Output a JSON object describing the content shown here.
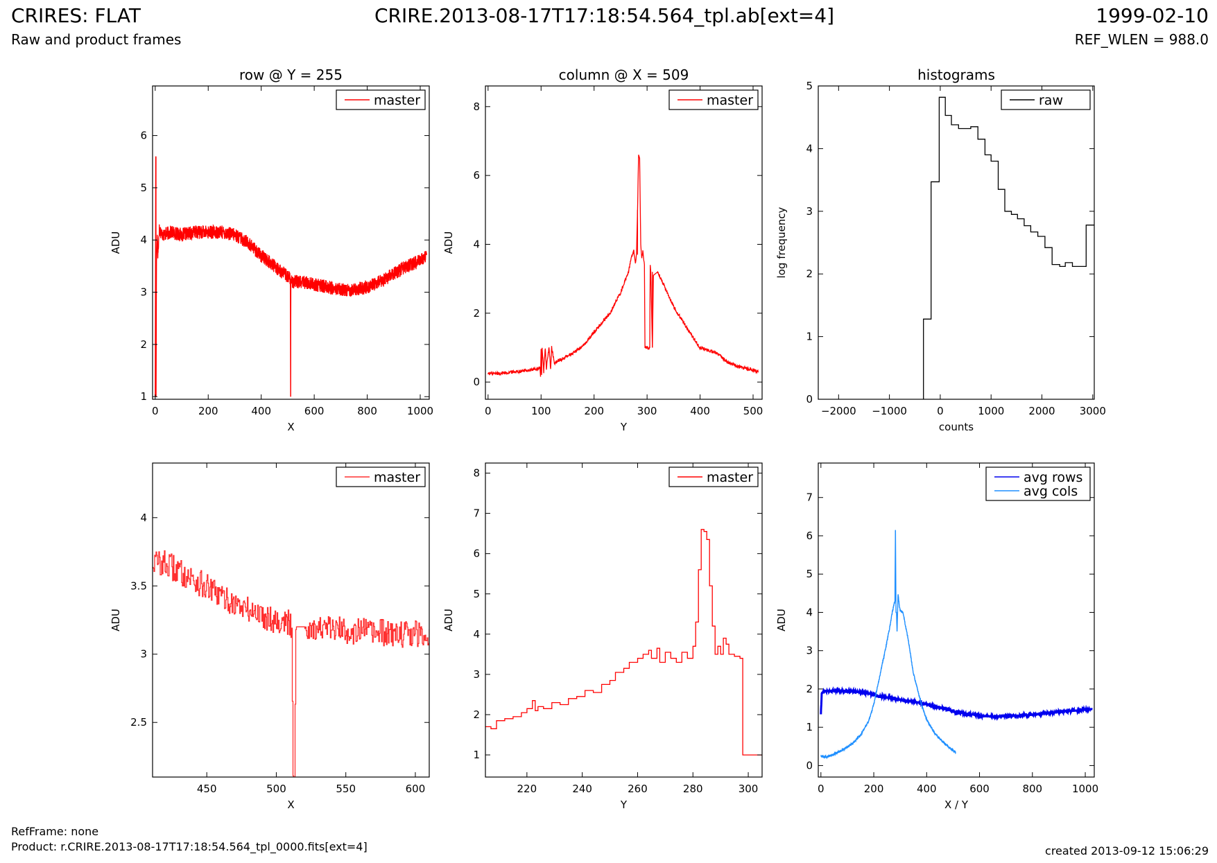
{
  "header": {
    "title": "CRIRES: FLAT",
    "subtitle": "Raw and product frames",
    "file": "CRIRE.2013-08-17T17:18:54.564_tpl.ab[ext=4]",
    "date": "1999-02-10",
    "ref_wlen": "REF_WLEN = 988.0"
  },
  "footer": {
    "ref_frame": "RefFrame: none",
    "product": "Product: r.CRIRE.2013-08-17T17:18:54.564_tpl_0000.fits[ext=4]",
    "created": "created 2013-09-12 15:06:29"
  },
  "colors": {
    "red": "#ff0000",
    "black": "#000000",
    "blue": "#0000ee",
    "lightblue": "#1e8fff"
  },
  "chart_data": [
    {
      "type": "line",
      "title": "row @ Y = 255",
      "xlabel": "X",
      "ylabel": "ADU",
      "xlim": [
        -10,
        1034
      ],
      "ylim": [
        0.95,
        6.95
      ],
      "xticks": [
        0,
        200,
        400,
        600,
        800,
        1000
      ],
      "yticks": [
        1,
        2,
        3,
        4,
        5,
        6
      ],
      "legend": "top-right",
      "series": [
        {
          "name": "master",
          "color": "#ff0000",
          "x": [
            0,
            2,
            3,
            5,
            8,
            10,
            15,
            30,
            60,
            100,
            150,
            200,
            250,
            300,
            350,
            400,
            450,
            500,
            510,
            511,
            512,
            513,
            520,
            550,
            600,
            650,
            700,
            750,
            800,
            850,
            900,
            950,
            1000,
            1024
          ],
          "y": [
            1.0,
            5.6,
            1.0,
            3.6,
            4.1,
            3.7,
            4.2,
            4.1,
            4.15,
            4.1,
            4.15,
            4.15,
            4.15,
            4.1,
            3.95,
            3.7,
            3.5,
            3.3,
            3.25,
            1.0,
            3.25,
            3.25,
            3.2,
            3.2,
            3.15,
            3.1,
            3.05,
            3.05,
            3.1,
            3.2,
            3.35,
            3.5,
            3.6,
            3.7
          ],
          "noise": 0.13
        }
      ]
    },
    {
      "type": "line",
      "title": "column @ X = 509",
      "xlabel": "Y",
      "ylabel": "ADU",
      "xlim": [
        -5,
        517
      ],
      "ylim": [
        -0.5,
        8.6
      ],
      "xticks": [
        0,
        100,
        200,
        300,
        400,
        500
      ],
      "yticks": [
        0,
        2,
        4,
        6,
        8
      ],
      "legend": "top-right",
      "series": [
        {
          "name": "master",
          "color": "#ff0000",
          "x": [
            0,
            20,
            50,
            80,
            98,
            99,
            100,
            101,
            102,
            105,
            108,
            110,
            115,
            118,
            120,
            125,
            150,
            180,
            200,
            230,
            250,
            265,
            270,
            275,
            278,
            280,
            282,
            284,
            286,
            288,
            290,
            292,
            295,
            296,
            297,
            300,
            305,
            306,
            307,
            310,
            312,
            320,
            350,
            380,
            400,
            430,
            450,
            470,
            500,
            510
          ],
          "y": [
            0.25,
            0.25,
            0.3,
            0.35,
            0.4,
            0.15,
            1.0,
            0.2,
            1.0,
            0.3,
            1.0,
            0.4,
            1.0,
            0.4,
            1.0,
            0.55,
            0.75,
            1.05,
            1.45,
            2.0,
            2.6,
            3.2,
            3.6,
            3.8,
            3.4,
            3.7,
            5.0,
            6.6,
            6.5,
            4.0,
            3.6,
            3.8,
            3.4,
            1.0,
            1.0,
            1.0,
            1.0,
            3.4,
            3.2,
            1.0,
            3.1,
            3.2,
            2.2,
            1.45,
            1.0,
            0.85,
            0.6,
            0.45,
            0.35,
            0.3
          ],
          "noise": 0.05
        }
      ]
    },
    {
      "type": "line",
      "title": "histograms",
      "xlabel": "counts",
      "ylabel": "log frequency",
      "xlim": [
        -2400,
        3030
      ],
      "ylim": [
        0,
        5
      ],
      "xticks": [
        -2000,
        -1000,
        0,
        1000,
        2000,
        3000
      ],
      "xtick_labels": [
        "−2000",
        "−1000",
        "0",
        "1000",
        "2000",
        "3000"
      ],
      "yticks": [
        0,
        1,
        2,
        3,
        4,
        5
      ],
      "legend": "top-right",
      "series": [
        {
          "name": "raw",
          "color": "#000000",
          "step": true,
          "x": [
            -330,
            -330,
            -180,
            -180,
            -20,
            -20,
            100,
            100,
            220,
            220,
            360,
            360,
            600,
            600,
            740,
            740,
            880,
            880,
            1000,
            1000,
            1140,
            1140,
            1270,
            1270,
            1400,
            1400,
            1520,
            1520,
            1650,
            1650,
            1780,
            1780,
            1920,
            1920,
            2060,
            2060,
            2200,
            2200,
            2350,
            2350,
            2460,
            2460,
            2600,
            2600,
            2870,
            2870,
            3030
          ],
          "y": [
            0,
            1.28,
            1.28,
            3.47,
            3.47,
            4.82,
            4.82,
            4.53,
            4.53,
            4.38,
            4.38,
            4.32,
            4.32,
            4.35,
            4.35,
            4.15,
            4.15,
            3.9,
            3.9,
            3.8,
            3.8,
            3.35,
            3.35,
            3.0,
            3.0,
            2.95,
            2.95,
            2.88,
            2.88,
            2.77,
            2.77,
            2.67,
            2.67,
            2.6,
            2.6,
            2.42,
            2.42,
            2.15,
            2.15,
            2.12,
            2.12,
            2.18,
            2.18,
            2.12,
            2.12,
            2.78,
            2.78
          ]
        }
      ]
    },
    {
      "type": "line",
      "title": "",
      "xlabel": "X",
      "ylabel": "ADU",
      "xlim": [
        411,
        610
      ],
      "ylim": [
        2.1,
        4.4
      ],
      "xticks": [
        450,
        500,
        550,
        600
      ],
      "yticks": [
        2.5,
        3.0,
        3.5,
        4.0
      ],
      "legend": "top-right",
      "series": [
        {
          "name": "master",
          "color": "#ff3030",
          "step": true,
          "x": [
            411,
            420,
            440,
            460,
            480,
            500,
            510,
            511,
            512,
            513,
            514,
            520,
            540,
            560,
            580,
            600,
            610
          ],
          "y": [
            3.68,
            3.66,
            3.55,
            3.42,
            3.32,
            3.25,
            3.22,
            3.2,
            2.1,
            2.1,
            3.2,
            3.2,
            3.18,
            3.17,
            3.15,
            3.15,
            3.14
          ],
          "noise": 0.1
        }
      ]
    },
    {
      "type": "line",
      "title": "",
      "xlabel": "Y",
      "ylabel": "ADU",
      "xlim": [
        205,
        305
      ],
      "ylim": [
        0.45,
        8.25
      ],
      "xticks": [
        220,
        240,
        260,
        280,
        300
      ],
      "yticks": [
        1,
        2,
        3,
        4,
        5,
        6,
        7,
        8
      ],
      "legend": "top-right",
      "series": [
        {
          "name": "master",
          "color": "#ff0000",
          "step": true,
          "x": [
            205,
            207,
            209,
            212,
            215,
            218,
            220,
            222,
            223,
            224,
            226,
            229,
            232,
            235,
            238,
            241,
            244,
            247,
            250,
            252,
            255,
            257,
            260,
            262,
            264,
            265,
            267,
            268,
            270,
            272,
            274,
            276,
            278,
            280,
            281,
            282,
            283,
            284,
            285,
            286,
            287,
            288,
            289,
            290,
            291,
            292,
            293,
            295,
            297,
            298,
            305
          ],
          "y": [
            1.7,
            1.65,
            1.85,
            1.9,
            1.95,
            2.05,
            2.15,
            2.35,
            2.1,
            2.2,
            2.15,
            2.3,
            2.25,
            2.4,
            2.45,
            2.6,
            2.55,
            2.75,
            2.85,
            3.05,
            3.15,
            3.3,
            3.4,
            3.5,
            3.6,
            3.4,
            3.65,
            3.3,
            3.55,
            3.4,
            3.3,
            3.55,
            3.4,
            3.7,
            4.3,
            5.6,
            6.6,
            6.55,
            6.35,
            5.2,
            4.2,
            3.5,
            3.7,
            3.5,
            3.9,
            3.75,
            3.5,
            3.45,
            3.4,
            1.0,
            1.0
          ]
        }
      ]
    },
    {
      "type": "line",
      "title": "",
      "xlabel": "X / Y",
      "ylabel": "ADU",
      "xlim": [
        -10,
        1034
      ],
      "ylim": [
        -0.3,
        7.9
      ],
      "xticks": [
        0,
        200,
        400,
        600,
        800,
        1000
      ],
      "yticks": [
        0,
        1,
        2,
        3,
        4,
        5,
        6,
        7
      ],
      "legend": "top-right",
      "series": [
        {
          "name": "avg rows",
          "color": "#0000ee",
          "width": 3,
          "x": [
            0,
            3,
            6,
            10,
            30,
            60,
            100,
            150,
            200,
            250,
            300,
            350,
            400,
            450,
            500,
            510,
            512,
            514,
            550,
            600,
            650,
            700,
            750,
            800,
            850,
            900,
            950,
            1000,
            1024
          ],
          "y": [
            1.35,
            1.9,
            1.9,
            1.95,
            1.95,
            1.95,
            1.95,
            1.92,
            1.85,
            1.78,
            1.72,
            1.67,
            1.6,
            1.52,
            1.42,
            1.4,
            1.3,
            1.4,
            1.35,
            1.3,
            1.28,
            1.29,
            1.3,
            1.33,
            1.36,
            1.4,
            1.43,
            1.46,
            1.47
          ],
          "noise": 0.03
        },
        {
          "name": "avg cols",
          "color": "#1e8fff",
          "width": 1.4,
          "x": [
            0,
            20,
            50,
            80,
            100,
            120,
            150,
            180,
            200,
            220,
            240,
            260,
            270,
            276,
            280,
            282,
            284,
            286,
            288,
            292,
            296,
            300,
            310,
            330,
            350,
            380,
            400,
            430,
            450,
            480,
            510
          ],
          "y": [
            0.25,
            0.22,
            0.3,
            0.4,
            0.48,
            0.58,
            0.8,
            1.15,
            1.6,
            2.25,
            2.9,
            3.6,
            4.0,
            4.2,
            4.3,
            6.15,
            4.0,
            4.0,
            3.5,
            4.5,
            4.2,
            4.05,
            4.0,
            3.3,
            2.4,
            1.6,
            1.2,
            0.85,
            0.7,
            0.5,
            0.35
          ],
          "noise": 0.03
        }
      ]
    }
  ]
}
